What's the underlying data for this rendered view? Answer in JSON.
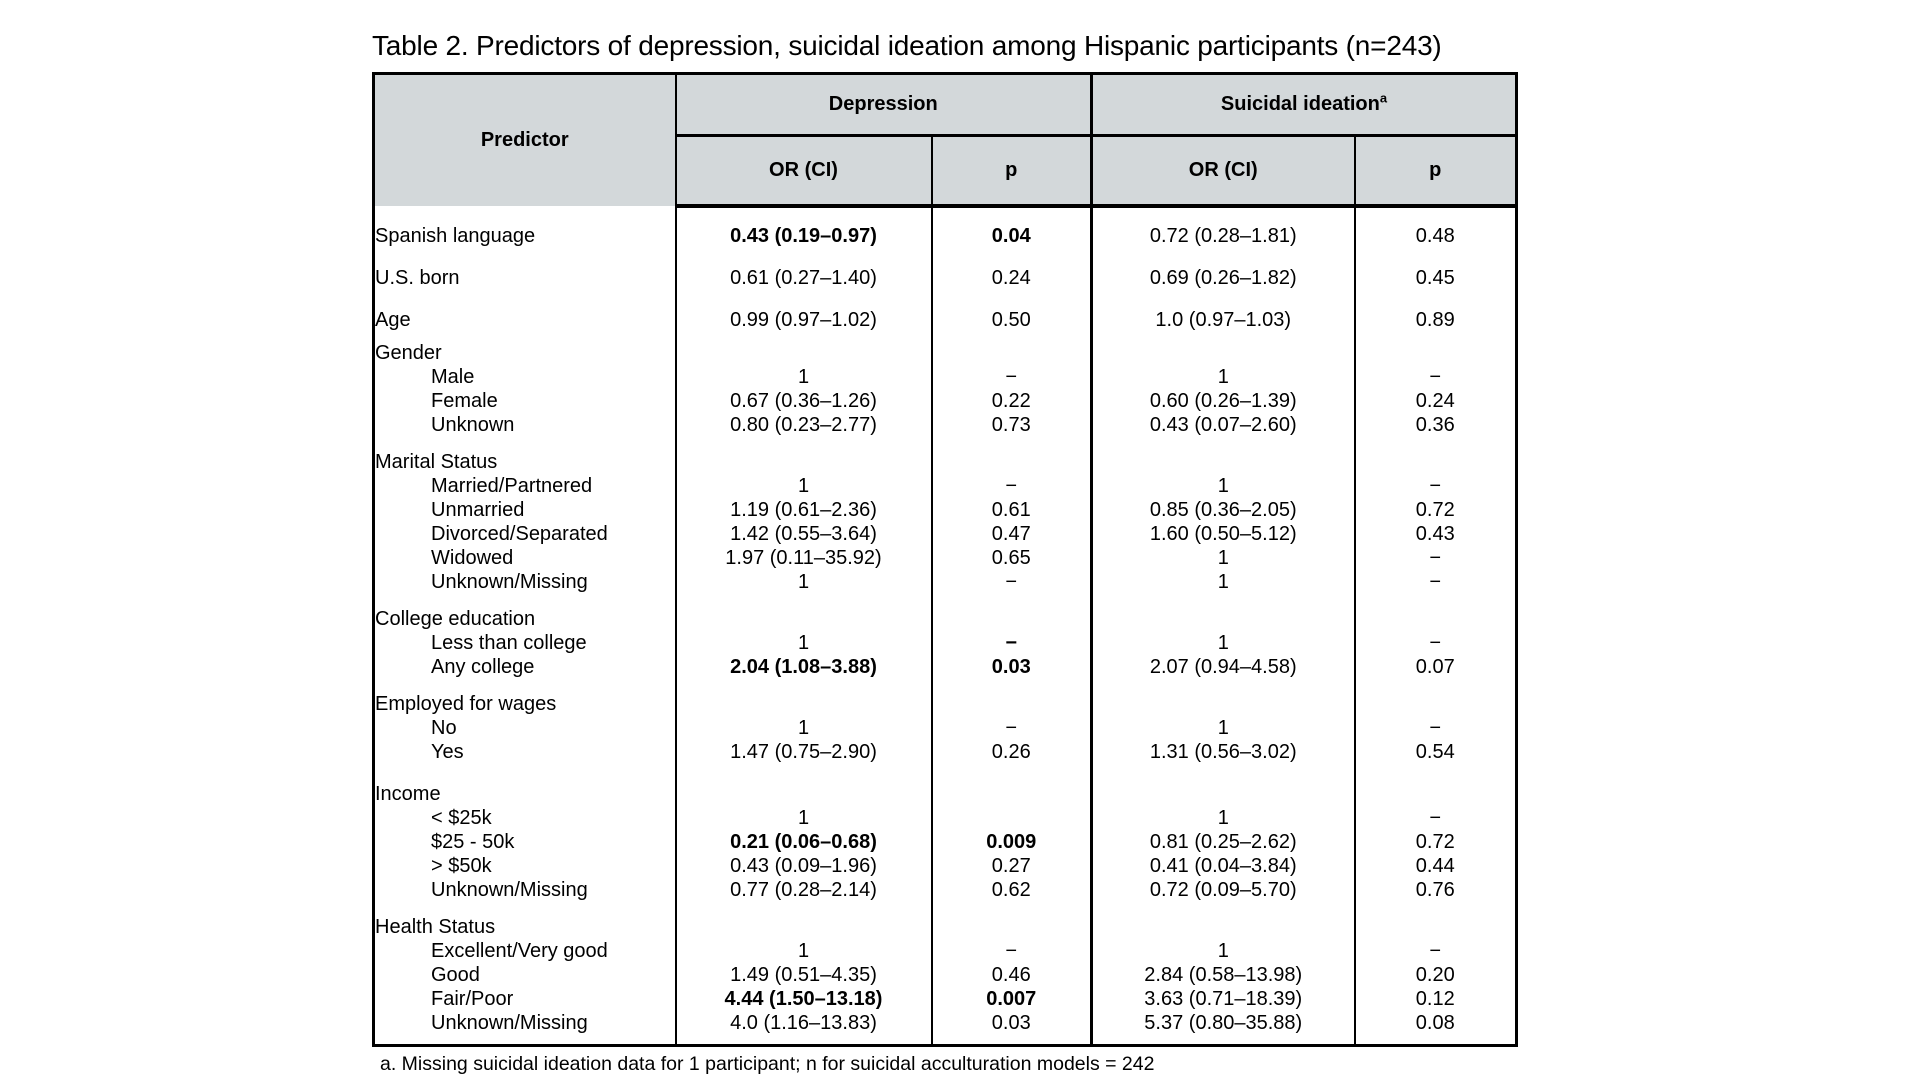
{
  "title": "Table 2. Predictors of depression, suicidal ideation among Hispanic participants (n=243)",
  "footnote": "a. Missing suicidal ideation data for 1 participant; n for suicidal acculturation models = 242",
  "colors": {
    "header_bg": "#d3d8da",
    "border": "#000000",
    "text": "#000000",
    "page_bg": "#ffffff"
  },
  "header": {
    "predictor": "Predictor",
    "groups": [
      {
        "label": "Depression",
        "sup": ""
      },
      {
        "label": "Suicidal ideation",
        "sup": "a"
      }
    ],
    "subcols": [
      "OR (CI)",
      "p",
      "OR (CI)",
      "p"
    ]
  },
  "rows": [
    {
      "type": "gap",
      "h": 8
    },
    {
      "type": "single",
      "label": "Spanish language",
      "cells": [
        [
          "0.43 (0.19–0.97)",
          true
        ],
        [
          "0.04",
          true
        ],
        [
          "0.72 (0.28–1.81)",
          false
        ],
        [
          "0.48",
          false
        ]
      ]
    },
    {
      "type": "single",
      "label": "U.S. born",
      "cells": [
        [
          "0.61 (0.27–1.40)",
          false
        ],
        [
          "0.24",
          false
        ],
        [
          "0.69 (0.26–1.82)",
          false
        ],
        [
          "0.45",
          false
        ]
      ]
    },
    {
      "type": "single",
      "label": "Age",
      "cells": [
        [
          "0.99 (0.97–1.02)",
          false
        ],
        [
          "0.50",
          false
        ],
        [
          "1.0 (0.97–1.03)",
          false
        ],
        [
          "0.89",
          false
        ]
      ]
    },
    {
      "type": "group",
      "label": "Gender"
    },
    {
      "type": "item",
      "label": "Male",
      "cells": [
        [
          "1",
          false
        ],
        [
          "−",
          false
        ],
        [
          "1",
          false
        ],
        [
          "−",
          false
        ]
      ]
    },
    {
      "type": "item",
      "label": "Female",
      "cells": [
        [
          "0.67 (0.36–1.26)",
          false
        ],
        [
          "0.22",
          false
        ],
        [
          "0.60 (0.26–1.39)",
          false
        ],
        [
          "0.24",
          false
        ]
      ]
    },
    {
      "type": "item",
      "label": "Unknown",
      "cells": [
        [
          "0.80 (0.23–2.77)",
          false
        ],
        [
          "0.73",
          false
        ],
        [
          "0.43 (0.07–2.60)",
          false
        ],
        [
          "0.36",
          false
        ]
      ]
    },
    {
      "type": "gap",
      "h": 13
    },
    {
      "type": "group",
      "label": "Marital Status"
    },
    {
      "type": "item",
      "label": "Married/Partnered",
      "cells": [
        [
          "1",
          false
        ],
        [
          "−",
          false
        ],
        [
          "1",
          false
        ],
        [
          "−",
          false
        ]
      ]
    },
    {
      "type": "item",
      "label": "Unmarried",
      "cells": [
        [
          "1.19 (0.61–2.36)",
          false
        ],
        [
          "0.61",
          false
        ],
        [
          "0.85 (0.36–2.05)",
          false
        ],
        [
          "0.72",
          false
        ]
      ]
    },
    {
      "type": "item",
      "label": "Divorced/Separated",
      "cells": [
        [
          "1.42 (0.55–3.64)",
          false
        ],
        [
          "0.47",
          false
        ],
        [
          "1.60 (0.50–5.12)",
          false
        ],
        [
          "0.43",
          false
        ]
      ]
    },
    {
      "type": "item",
      "label": "Widowed",
      "cells": [
        [
          "1.97 (0.11–35.92)",
          false
        ],
        [
          "0.65",
          false
        ],
        [
          "1",
          false
        ],
        [
          "−",
          false
        ]
      ]
    },
    {
      "type": "item",
      "label": "Unknown/Missing",
      "cells": [
        [
          "1",
          false
        ],
        [
          "−",
          false
        ],
        [
          "1",
          false
        ],
        [
          "−",
          false
        ]
      ]
    },
    {
      "type": "gap",
      "h": 13
    },
    {
      "type": "group",
      "label": "College education"
    },
    {
      "type": "item",
      "label": "Less than college",
      "cells": [
        [
          "1",
          false
        ],
        [
          "−",
          true
        ],
        [
          "1",
          false
        ],
        [
          "−",
          false
        ]
      ]
    },
    {
      "type": "item",
      "label": "Any college",
      "cells": [
        [
          "2.04 (1.08–3.88)",
          true
        ],
        [
          "0.03",
          true
        ],
        [
          "2.07 (0.94–4.58)",
          false
        ],
        [
          "0.07",
          false
        ]
      ]
    },
    {
      "type": "gap",
      "h": 13
    },
    {
      "type": "group",
      "label": "Employed for wages"
    },
    {
      "type": "item",
      "label": "No",
      "cells": [
        [
          "1",
          false
        ],
        [
          "−",
          false
        ],
        [
          "1",
          false
        ],
        [
          "−",
          false
        ]
      ]
    },
    {
      "type": "item",
      "label": "Yes",
      "cells": [
        [
          "1.47 (0.75–2.90)",
          false
        ],
        [
          "0.26",
          false
        ],
        [
          "1.31 (0.56–3.02)",
          false
        ],
        [
          "0.54",
          false
        ]
      ]
    },
    {
      "type": "gap",
      "h": 18
    },
    {
      "type": "group",
      "label": "Income"
    },
    {
      "type": "item",
      "label": "< $25k",
      "cells": [
        [
          "1",
          false
        ],
        [
          "",
          false
        ],
        [
          "1",
          false
        ],
        [
          "−",
          false
        ]
      ]
    },
    {
      "type": "item",
      "label": "$25 - 50k",
      "cells": [
        [
          "0.21 (0.06–0.68)",
          true
        ],
        [
          "0.009",
          true
        ],
        [
          "0.81 (0.25–2.62)",
          false
        ],
        [
          "0.72",
          false
        ]
      ]
    },
    {
      "type": "item",
      "label": "> $50k",
      "cells": [
        [
          "0.43 (0.09–1.96)",
          false
        ],
        [
          "0.27",
          false
        ],
        [
          "0.41 (0.04–3.84)",
          false
        ],
        [
          "0.44",
          false
        ]
      ]
    },
    {
      "type": "item",
      "label": "Unknown/Missing",
      "cells": [
        [
          "0.77 (0.28–2.14)",
          false
        ],
        [
          "0.62",
          false
        ],
        [
          "0.72 (0.09–5.70)",
          false
        ],
        [
          "0.76",
          false
        ]
      ]
    },
    {
      "type": "gap",
      "h": 13
    },
    {
      "type": "group",
      "label": "Health Status"
    },
    {
      "type": "item",
      "label": "Excellent/Very good",
      "cells": [
        [
          "1",
          false
        ],
        [
          "−",
          false
        ],
        [
          "1",
          false
        ],
        [
          "−",
          false
        ]
      ]
    },
    {
      "type": "item",
      "label": "Good",
      "cells": [
        [
          "1.49 (0.51–4.35)",
          false
        ],
        [
          "0.46",
          false
        ],
        [
          "2.84 (0.58–13.98)",
          false
        ],
        [
          "0.20",
          false
        ]
      ]
    },
    {
      "type": "item",
      "label": "Fair/Poor",
      "cells": [
        [
          "4.44 (1.50–13.18)",
          true
        ],
        [
          "0.007",
          true
        ],
        [
          "3.63 (0.71–18.39)",
          false
        ],
        [
          "0.12",
          false
        ]
      ]
    },
    {
      "type": "item",
      "label": "Unknown/Missing",
      "cells": [
        [
          "4.0 (1.16–13.83)",
          false
        ],
        [
          "0.03",
          false
        ],
        [
          "5.37 (0.80–35.88)",
          false
        ],
        [
          "0.08",
          false
        ]
      ]
    },
    {
      "type": "gap",
      "h": 8
    }
  ]
}
